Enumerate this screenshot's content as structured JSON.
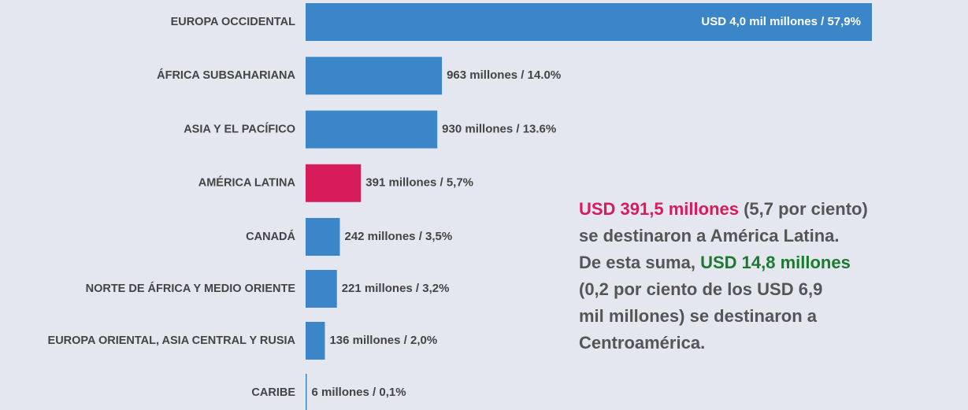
{
  "chart_data": {
    "type": "hbar",
    "categories": [
      "EUROPA OCCIDENTAL",
      "ÁFRICA SUBSAHARIANA",
      "ASIA Y EL PACÍFICO",
      "AMÉRICA LATINA",
      "CANADÁ",
      "NORTE DE ÁFRICA Y MEDIO ORIENTE",
      "EUROPA ORIENTAL, ASIA CENTRAL Y RUSIA",
      "CARIBE"
    ],
    "values": [
      4000,
      963,
      930,
      391,
      242,
      221,
      136,
      6
    ],
    "value_labels": [
      "USD 4,0 mil millones / 57,9%",
      "963 millones / 14.0%",
      "930 millones / 13.6%",
      "391 millones / 5,7%",
      "242 millones / 3,5%",
      "221 millones / 3,2%",
      "136 millones / 2,0%",
      "6 millones / 0,1%"
    ],
    "colors": [
      "#3a86c8",
      "#3a86c8",
      "#3a86c8",
      "#d81b5a",
      "#3a86c8",
      "#3a86c8",
      "#3a86c8",
      "#3a86c8"
    ],
    "annotation": [
      [
        {
          "text": "USD 391,5 millones",
          "color": "#d81b5a"
        },
        {
          "text": " (5,7 por ciento)",
          "color": "#555555"
        }
      ],
      [
        {
          "text": "se destinaron a América Latina.",
          "color": "#555555"
        }
      ],
      [
        {
          "text": "De esta suma, ",
          "color": "#555555"
        },
        {
          "text": "USD 14,8 millones",
          "color": "#1a7a2e"
        }
      ],
      [
        {
          "text": "(0,2 por ciento de los USD 6,9",
          "color": "#555555"
        }
      ],
      [
        {
          "text": "mil millones) se destinaron a",
          "color": "#555555"
        }
      ],
      [
        {
          "text": "Centroamérica.",
          "color": "#555555"
        }
      ]
    ]
  }
}
